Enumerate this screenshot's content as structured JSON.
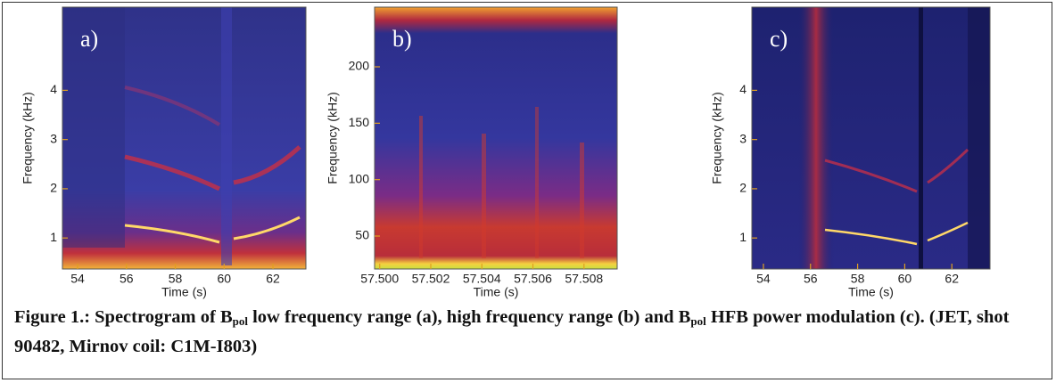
{
  "chart_data": [
    {
      "type": "spectrogram",
      "panel_label": "a)",
      "xlabel": "Time (s)",
      "ylabel": "Frequency (kHz)",
      "xlim": [
        53.38,
        63.35
      ],
      "xticks": [
        54,
        56,
        58,
        60,
        62
      ],
      "ylim": [
        0.37,
        5.69
      ],
      "yticks": [
        1,
        2,
        3,
        4
      ]
    },
    {
      "type": "spectrogram",
      "panel_label": "b)",
      "xlabel": "Time (s)",
      "ylabel": "Frequency (kHz)",
      "xlim": [
        57.4998,
        57.5093
      ],
      "xticks": [
        {
          "value": 57.5,
          "label": "57.500"
        },
        {
          "value": 57.502,
          "label": "57.502"
        },
        {
          "value": 57.504,
          "label": "57.504"
        },
        {
          "value": 57.506,
          "label": "57.506"
        },
        {
          "value": 57.508,
          "label": "57.508"
        }
      ],
      "ylim": [
        20.8,
        252.9
      ],
      "yticks": [
        50,
        100,
        150,
        200
      ]
    },
    {
      "type": "spectrogram",
      "panel_label": "c)",
      "xlabel": "Time (s)",
      "ylabel": "Frequency (kHz)",
      "xlim": [
        53.51,
        63.62
      ],
      "xticks": [
        54,
        56,
        58,
        60,
        62
      ],
      "ylim": [
        0.37,
        5.69
      ],
      "yticks": [
        1,
        2,
        3,
        4
      ]
    }
  ],
  "caption": {
    "parts": [
      "Figure 1.: Spectrogram of B",
      "pol",
      " low frequency range (a), high frequency range (b) and B",
      "pol",
      " HFB power modulation (c). (JET, shot 90482, Mirnov coil: C1M-I803)"
    ]
  }
}
